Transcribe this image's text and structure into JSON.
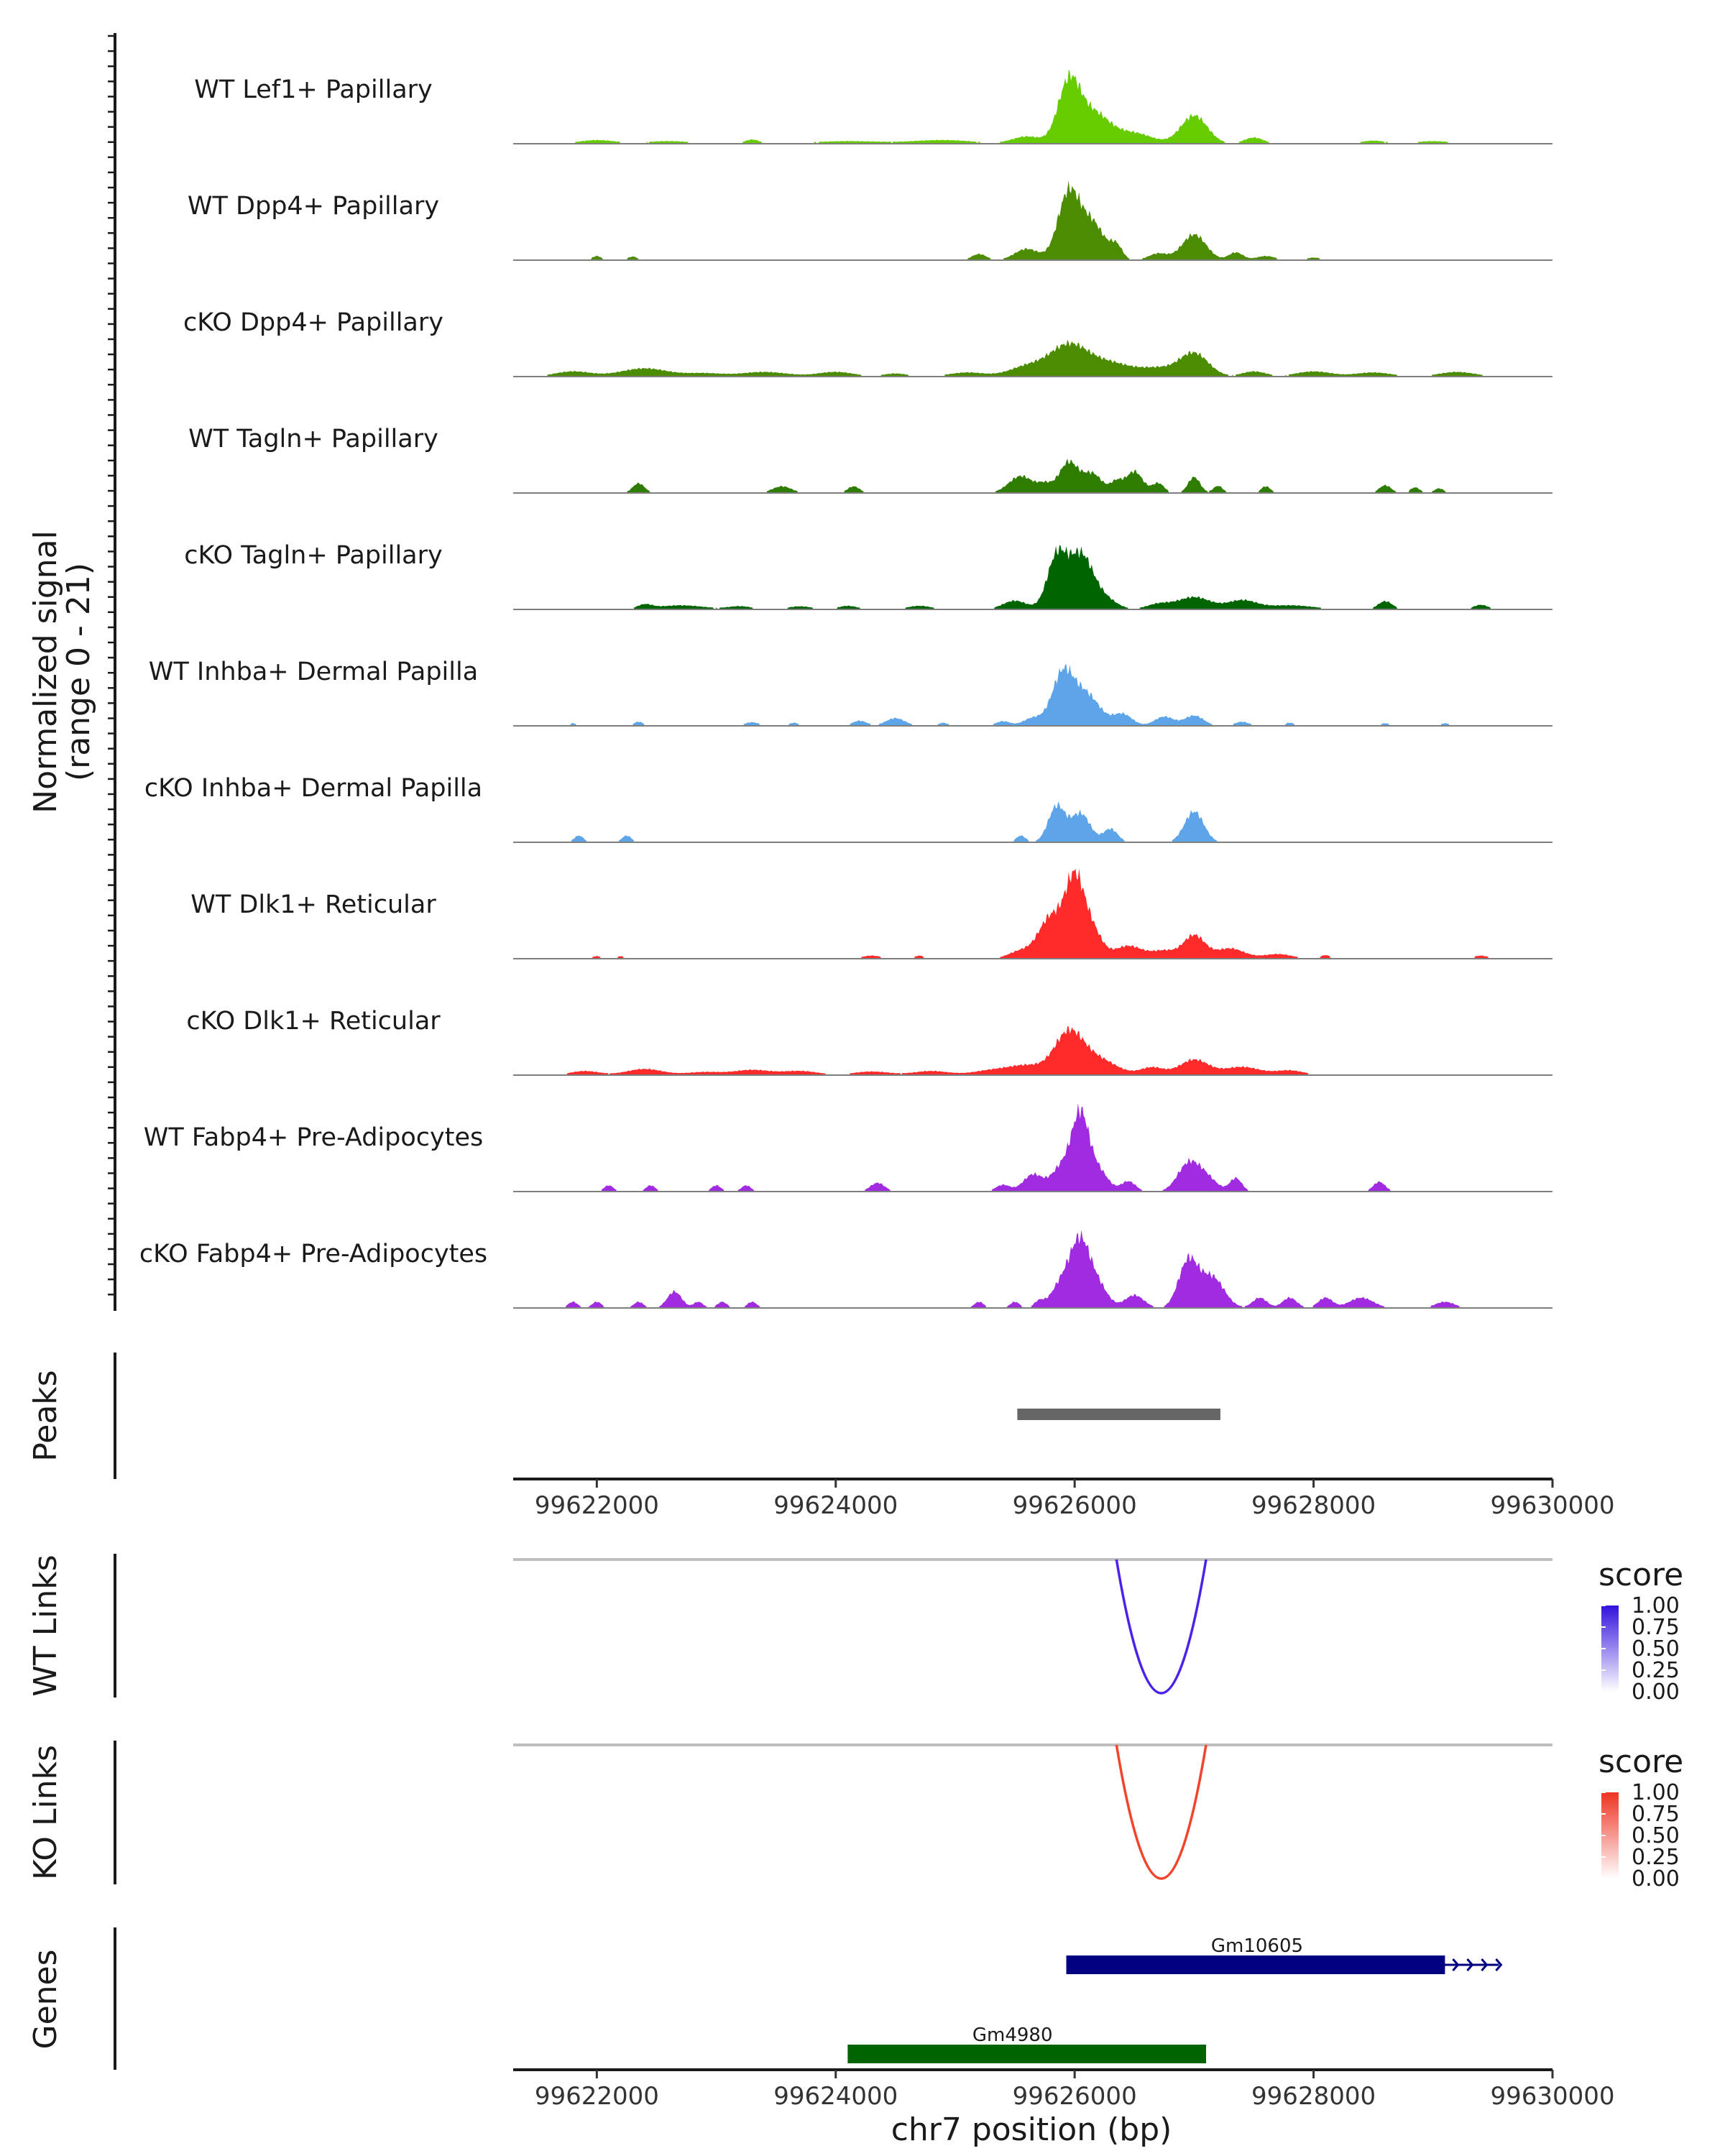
{
  "chart_data": {
    "type": "area",
    "title": "",
    "region": "chr7:99621300-99629600",
    "xlim": [
      99621300,
      99630000
    ],
    "xlabel": "chr7 position (bp)",
    "x_ticks": [
      99622000,
      99624000,
      99626000,
      99628000,
      99630000
    ],
    "x_tick_labels": [
      "99622000",
      "99624000",
      "99626000",
      "99628000",
      "99630000"
    ],
    "coverage": {
      "ylabel_line1": "Normalized signal",
      "ylabel_line2": "(range 0 - 21)",
      "ylim": [
        0,
        21
      ],
      "tracks": [
        {
          "name": "WT Lef1+ Papillary",
          "color": "#66CC00",
          "peaks": [
            [
              99622000,
              0.7,
              150
            ],
            [
              99622600,
              0.5,
              200
            ],
            [
              99623300,
              0.8,
              60
            ],
            [
              99624100,
              0.5,
              300
            ],
            [
              99624900,
              0.7,
              250
            ],
            [
              99625600,
              1.4,
              120
            ],
            [
              99625950,
              11,
              90
            ],
            [
              99626150,
              6,
              140
            ],
            [
              99626500,
              2,
              150
            ],
            [
              99627000,
              5.5,
              110
            ],
            [
              99627500,
              1.2,
              80
            ],
            [
              99628500,
              0.6,
              100
            ],
            [
              99629000,
              0.5,
              150
            ]
          ]
        },
        {
          "name": "WT Dpp4+ Papillary",
          "color": "#4C8C00",
          "peaks": [
            [
              99622000,
              0.8,
              40
            ],
            [
              99622300,
              0.7,
              40
            ],
            [
              99625200,
              1.2,
              60
            ],
            [
              99625600,
              2.2,
              100
            ],
            [
              99625950,
              13,
              90
            ],
            [
              99626150,
              7,
              100
            ],
            [
              99626350,
              2.6,
              50
            ],
            [
              99626700,
              1.3,
              80
            ],
            [
              99627000,
              5,
              100
            ],
            [
              99627350,
              1.5,
              60
            ],
            [
              99627600,
              0.8,
              80
            ],
            [
              99628000,
              0.5,
              60
            ]
          ]
        },
        {
          "name": "cKO Dpp4+ Papillary",
          "color": "#4C8C00",
          "peaks": [
            [
              99621800,
              1,
              150
            ],
            [
              99622400,
              1.6,
              200
            ],
            [
              99622900,
              0.6,
              150
            ],
            [
              99623400,
              0.9,
              200
            ],
            [
              99624000,
              0.9,
              150
            ],
            [
              99624500,
              0.6,
              100
            ],
            [
              99625100,
              0.8,
              150
            ],
            [
              99625600,
              1.9,
              150
            ],
            [
              99625950,
              6,
              160
            ],
            [
              99626300,
              2.5,
              180
            ],
            [
              99626700,
              1.5,
              150
            ],
            [
              99627000,
              4.5,
              120
            ],
            [
              99627500,
              1,
              100
            ],
            [
              99628000,
              1,
              150
            ],
            [
              99628500,
              0.8,
              150
            ],
            [
              99629200,
              0.9,
              150
            ]
          ]
        },
        {
          "name": "WT Tagln+ Papillary",
          "color": "#2E7D00",
          "peaks": [
            [
              99622350,
              1.9,
              50
            ],
            [
              99623550,
              1.3,
              80
            ],
            [
              99624150,
              1.3,
              50
            ],
            [
              99625550,
              3.3,
              100
            ],
            [
              99625750,
              1.5,
              60
            ],
            [
              99625950,
              6,
              80
            ],
            [
              99626150,
              3.7,
              80
            ],
            [
              99626350,
              2.1,
              50
            ],
            [
              99626500,
              4.2,
              70
            ],
            [
              99626700,
              1.9,
              50
            ],
            [
              99627000,
              3.1,
              50
            ],
            [
              99627200,
              1.4,
              40
            ],
            [
              99627600,
              1.3,
              40
            ],
            [
              99628600,
              1.5,
              50
            ],
            [
              99628850,
              1.1,
              40
            ],
            [
              99629050,
              0.9,
              40
            ]
          ]
        },
        {
          "name": "cKO Tagln+ Papillary",
          "color": "#006400",
          "peaks": [
            [
              99622400,
              0.8,
              60
            ],
            [
              99622700,
              0.8,
              200
            ],
            [
              99623200,
              0.6,
              100
            ],
            [
              99623700,
              0.6,
              100
            ],
            [
              99624100,
              0.7,
              80
            ],
            [
              99624700,
              0.7,
              100
            ],
            [
              99625500,
              1.7,
              100
            ],
            [
              99625850,
              10,
              80
            ],
            [
              99626050,
              10.5,
              100
            ],
            [
              99626250,
              2,
              100
            ],
            [
              99626700,
              1,
              100
            ],
            [
              99627000,
              2.4,
              140
            ],
            [
              99627400,
              1.7,
              120
            ],
            [
              99627800,
              0.8,
              200
            ],
            [
              99628600,
              1.6,
              60
            ],
            [
              99629400,
              0.9,
              60
            ]
          ]
        },
        {
          "name": "WT Inhba+ Dermal Papilla",
          "color": "#5DA5E8",
          "peaks": [
            [
              99621800,
              0.5,
              30
            ],
            [
              99622350,
              0.8,
              40
            ],
            [
              99623300,
              0.7,
              60
            ],
            [
              99623650,
              0.6,
              40
            ],
            [
              99624200,
              1,
              60
            ],
            [
              99624500,
              1.5,
              80
            ],
            [
              99624900,
              0.6,
              40
            ],
            [
              99625400,
              0.9,
              60
            ],
            [
              99625650,
              1.5,
              80
            ],
            [
              99625900,
              10,
              90
            ],
            [
              99626100,
              6,
              110
            ],
            [
              99626400,
              2.3,
              80
            ],
            [
              99626750,
              1.8,
              80
            ],
            [
              99627000,
              2,
              80
            ],
            [
              99627400,
              0.8,
              60
            ],
            [
              99627800,
              0.6,
              40
            ],
            [
              99628600,
              0.5,
              40
            ],
            [
              99629100,
              0.5,
              40
            ]
          ]
        },
        {
          "name": "cKO Inhba+ Dermal Papilla",
          "color": "#5DA5E8",
          "peaks": [
            [
              99621850,
              1.3,
              40
            ],
            [
              99622250,
              1.3,
              40
            ],
            [
              99625550,
              1.3,
              40
            ],
            [
              99625850,
              7,
              70
            ],
            [
              99626050,
              5.6,
              80
            ],
            [
              99626300,
              2.6,
              60
            ],
            [
              99627000,
              6,
              80
            ]
          ]
        },
        {
          "name": "WT Dlk1+ Reticular",
          "color": "#FF2A2A",
          "peaks": [
            [
              99622000,
              0.5,
              40
            ],
            [
              99622200,
              0.5,
              30
            ],
            [
              99624300,
              0.6,
              80
            ],
            [
              99624700,
              0.6,
              40
            ],
            [
              99625550,
              1.5,
              100
            ],
            [
              99625800,
              8,
              100
            ],
            [
              99626000,
              15,
              80
            ],
            [
              99626150,
              5,
              80
            ],
            [
              99626450,
              2.5,
              120
            ],
            [
              99626750,
              1.5,
              100
            ],
            [
              99627000,
              4.5,
              90
            ],
            [
              99627300,
              2,
              120
            ],
            [
              99627700,
              0.9,
              120
            ],
            [
              99628100,
              0.7,
              40
            ],
            [
              99629400,
              0.6,
              60
            ]
          ]
        },
        {
          "name": "cKO Dlk1+ Reticular",
          "color": "#FF2A2A",
          "peaks": [
            [
              99621900,
              0.8,
              120
            ],
            [
              99622400,
              1.2,
              150
            ],
            [
              99622900,
              0.6,
              150
            ],
            [
              99623300,
              1,
              150
            ],
            [
              99623700,
              0.8,
              150
            ],
            [
              99624300,
              0.7,
              150
            ],
            [
              99624800,
              0.8,
              150
            ],
            [
              99625300,
              0.9,
              150
            ],
            [
              99625600,
              1.8,
              150
            ],
            [
              99625950,
              8,
              120
            ],
            [
              99626200,
              3,
              150
            ],
            [
              99626650,
              1.5,
              100
            ],
            [
              99627000,
              3,
              120
            ],
            [
              99627400,
              1.6,
              150
            ],
            [
              99627800,
              0.9,
              120
            ]
          ]
        },
        {
          "name": "WT Fabp4+ Pre-Adipocytes",
          "color": "#A02BE0",
          "peaks": [
            [
              99622100,
              1.2,
              40
            ],
            [
              99622450,
              1.2,
              40
            ],
            [
              99623000,
              1.2,
              40
            ],
            [
              99623250,
              1.2,
              40
            ],
            [
              99624350,
              1.7,
              60
            ],
            [
              99625400,
              1.3,
              60
            ],
            [
              99625650,
              3.3,
              80
            ],
            [
              99625900,
              5,
              90
            ],
            [
              99626050,
              14,
              70
            ],
            [
              99626200,
              4,
              80
            ],
            [
              99626450,
              2,
              60
            ],
            [
              99626950,
              5.2,
              90
            ],
            [
              99627100,
              2.6,
              90
            ],
            [
              99627350,
              2.6,
              50
            ],
            [
              99628550,
              1.9,
              50
            ]
          ]
        },
        {
          "name": "cKO Fabp4+ Pre-Adipocytes",
          "color": "#A02BE0",
          "peaks": [
            [
              99621800,
              1.2,
              40
            ],
            [
              99622000,
              1.2,
              40
            ],
            [
              99622350,
              1.2,
              40
            ],
            [
              99622650,
              3.2,
              60
            ],
            [
              99622850,
              1.2,
              40
            ],
            [
              99623050,
              1.2,
              40
            ],
            [
              99623300,
              1.2,
              40
            ],
            [
              99625200,
              1.2,
              40
            ],
            [
              99625500,
              1.2,
              40
            ],
            [
              99625700,
              1.2,
              40
            ],
            [
              99625900,
              5,
              90
            ],
            [
              99626050,
              12,
              80
            ],
            [
              99626200,
              4,
              80
            ],
            [
              99626500,
              2.5,
              80
            ],
            [
              99626950,
              9,
              80
            ],
            [
              99627150,
              6,
              100
            ],
            [
              99627550,
              2,
              60
            ],
            [
              99627800,
              2,
              60
            ],
            [
              99628100,
              2,
              60
            ],
            [
              99628400,
              2,
              100
            ],
            [
              99629100,
              1.2,
              80
            ]
          ]
        }
      ]
    },
    "peaks_track": {
      "label": "Peaks",
      "regions": [
        [
          99625520,
          99627220
        ]
      ],
      "color": "#666666"
    },
    "link_tracks": [
      {
        "label": "WT Links",
        "start": 99626350,
        "end": 99627100,
        "score": 1.0,
        "color": "#4B22E8",
        "legend_low": "#FFFFFF",
        "legend_high": "#3311DD"
      },
      {
        "label": "KO Links",
        "start": 99626350,
        "end": 99627100,
        "score": 1.0,
        "color": "#F2442A",
        "legend_low": "#FFFFFF",
        "legend_high": "#EE3322"
      }
    ],
    "link_legend": {
      "title": "score",
      "ticks": [
        "1.00",
        "0.75",
        "0.50",
        "0.25",
        "0.00"
      ]
    },
    "genes": {
      "label": "Genes",
      "items": [
        {
          "name": "Gm10605",
          "start": 99625930,
          "end": 99629100,
          "arrow_end": 99629550,
          "strand": "+",
          "color": "#000080"
        },
        {
          "name": "Gm4980",
          "start": 99624100,
          "end": 99627100,
          "strand": "",
          "color": "#006400"
        }
      ]
    }
  }
}
